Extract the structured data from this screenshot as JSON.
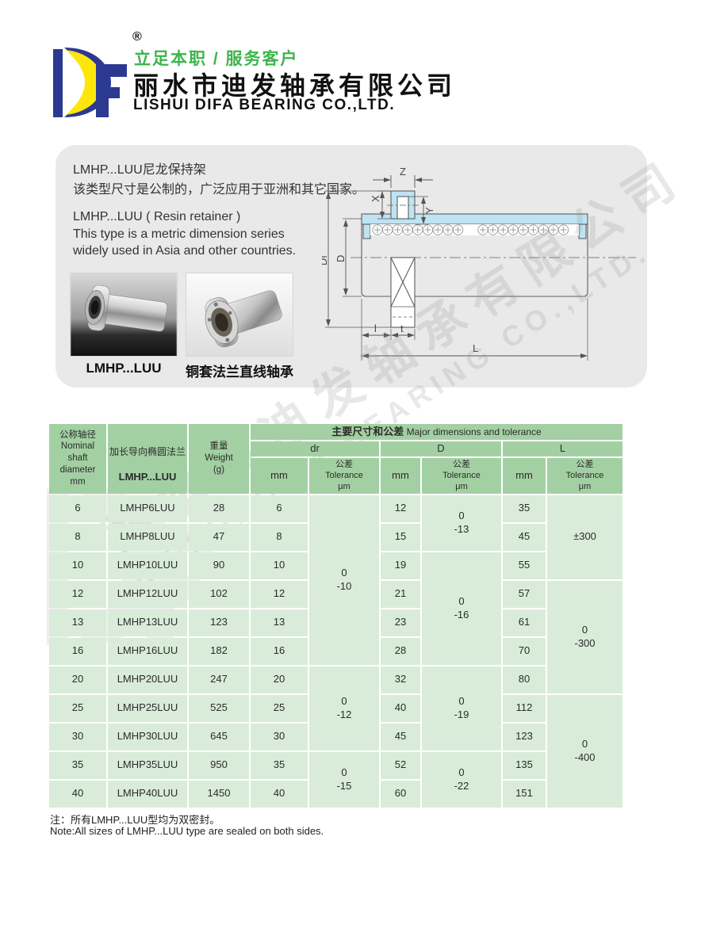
{
  "header": {
    "registered": "®",
    "slogan": "立足本职 / 服务客户",
    "company_cn": "丽水市迪发轴承有限公司",
    "company_en": "LISHUI DIFA BEARING CO.,LTD.",
    "brand_blue": "#2b3990",
    "brand_yellow": "#ffe60a",
    "slogan_green": "#3cb54a"
  },
  "intro": {
    "cn_line1": "LMHP...LUU尼龙保持架",
    "cn_line2": "该类型尺寸是公制的，广泛应用于亚洲和其它国家。",
    "en_line1": "LMHP...LUU ( Resin retainer )",
    "en_line2": "This type is a metric dimension series",
    "en_line3": "widely used in Asia and other countries.",
    "photo1_caption": "LMHP...LUU",
    "photo2_caption": "铜套法兰直线轴承"
  },
  "diagram": {
    "labels": {
      "z": "Z",
      "x": "X",
      "y": "Y",
      "df": "Df",
      "d": "D",
      "l": "l",
      "t": "t",
      "L": "L"
    },
    "shell_blue": "#bfe3f3"
  },
  "table": {
    "colors": {
      "header_bg": "#a3d0a3",
      "cell_bg": "#d9ecd9"
    },
    "headers": {
      "col1": "公称轴径\nNominal\nshaft\ndiameter\nmm",
      "col2_cn": "加长导向椭圆法兰",
      "col2_model": "LMHP...LUU",
      "col3": "重量\nWeight\n(g)",
      "group_title_cn": "主要尺寸和公差",
      "group_title_en": " Major dimensions and tolerance",
      "groups": [
        "dr",
        "D",
        "L"
      ],
      "sub_mm": "mm",
      "sub_tol": "公差\nTolerance\nμm"
    },
    "rows": [
      {
        "nominal": "6",
        "model": "LMHP6LUU",
        "weight": "28",
        "dr": "6",
        "d": "12",
        "l": "35"
      },
      {
        "nominal": "8",
        "model": "LMHP8LUU",
        "weight": "47",
        "dr": "8",
        "d": "15",
        "l": "45"
      },
      {
        "nominal": "10",
        "model": "LMHP10LUU",
        "weight": "90",
        "dr": "10",
        "d": "19",
        "l": "55"
      },
      {
        "nominal": "12",
        "model": "LMHP12LUU",
        "weight": "102",
        "dr": "12",
        "d": "21",
        "l": "57"
      },
      {
        "nominal": "13",
        "model": "LMHP13LUU",
        "weight": "123",
        "dr": "13",
        "d": "23",
        "l": "61"
      },
      {
        "nominal": "16",
        "model": "LMHP16LUU",
        "weight": "182",
        "dr": "16",
        "d": "28",
        "l": "70"
      },
      {
        "nominal": "20",
        "model": "LMHP20LUU",
        "weight": "247",
        "dr": "20",
        "d": "32",
        "l": "80"
      },
      {
        "nominal": "25",
        "model": "LMHP25LUU",
        "weight": "525",
        "dr": "25",
        "d": "40",
        "l": "112"
      },
      {
        "nominal": "30",
        "model": "LMHP30LUU",
        "weight": "645",
        "dr": "30",
        "d": "45",
        "l": "123"
      },
      {
        "nominal": "35",
        "model": "LMHP35LUU",
        "weight": "950",
        "dr": "35",
        "d": "52",
        "l": "135"
      },
      {
        "nominal": "40",
        "model": "LMHP40LUU",
        "weight": "1450",
        "dr": "40",
        "d": "60",
        "l": "151"
      }
    ],
    "dr_tol_spans": [
      {
        "start": 0,
        "count": 6,
        "text": "0\n-10"
      },
      {
        "start": 6,
        "count": 3,
        "text": "0\n-12"
      },
      {
        "start": 9,
        "count": 2,
        "text": "0\n-15"
      }
    ],
    "d_tol_spans": [
      {
        "start": 0,
        "count": 2,
        "text": "0\n-13"
      },
      {
        "start": 2,
        "count": 4,
        "text": "0\n-16"
      },
      {
        "start": 6,
        "count": 3,
        "text": "0\n-19"
      },
      {
        "start": 9,
        "count": 2,
        "text": "0\n-22"
      }
    ],
    "l_tol_spans": [
      {
        "start": 0,
        "count": 3,
        "text": "±300"
      },
      {
        "start": 3,
        "count": 4,
        "text": "0\n-300"
      },
      {
        "start": 7,
        "count": 4,
        "text": "0\n-400"
      }
    ]
  },
  "notes": {
    "cn": "注：所有LMHP...LUU型均为双密封。",
    "en": "Note:All sizes of LMHP...LUU type are sealed on both sides."
  },
  "watermark": {
    "line1": "丽水市迪发轴承有限公司",
    "line2": "LISHUI DIFA BEARING CO.,LTD."
  }
}
